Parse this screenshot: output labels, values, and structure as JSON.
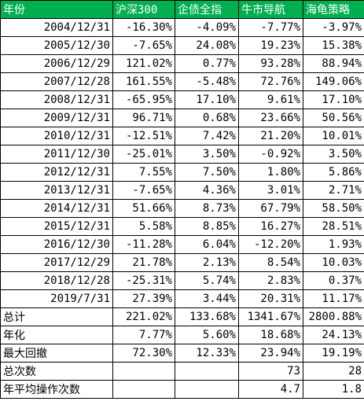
{
  "table": {
    "header": [
      "年份",
      "沪深300",
      "企债全指",
      "牛市导航",
      "海龟策略"
    ],
    "rows": [
      [
        "2004/12/31",
        "-16.30%",
        "-4.09%",
        "-7.77%",
        "-3.97%"
      ],
      [
        "2005/12/30",
        "-7.65%",
        "24.08%",
        "19.23%",
        "15.38%"
      ],
      [
        "2006/12/29",
        "121.02%",
        "0.77%",
        "93.28%",
        "88.94%"
      ],
      [
        "2007/12/28",
        "161.55%",
        "-5.48%",
        "72.76%",
        "149.06%"
      ],
      [
        "2008/12/31",
        "-65.95%",
        "17.10%",
        "9.61%",
        "17.10%"
      ],
      [
        "2009/12/31",
        "96.71%",
        "0.68%",
        "23.66%",
        "50.56%"
      ],
      [
        "2010/12/31",
        "-12.51%",
        "7.42%",
        "21.20%",
        "10.01%"
      ],
      [
        "2011/12/30",
        "-25.01%",
        "3.50%",
        "-0.92%",
        "3.50%"
      ],
      [
        "2012/12/31",
        "7.55%",
        "7.50%",
        "1.80%",
        "5.86%"
      ],
      [
        "2013/12/31",
        "-7.65%",
        "4.36%",
        "3.01%",
        "2.71%"
      ],
      [
        "2014/12/31",
        "51.66%",
        "8.73%",
        "67.79%",
        "58.50%"
      ],
      [
        "2015/12/31",
        "5.58%",
        "8.85%",
        "16.27%",
        "28.51%"
      ],
      [
        "2016/12/30",
        "-11.28%",
        "6.04%",
        "-12.20%",
        "1.93%"
      ],
      [
        "2017/12/29",
        "21.78%",
        "2.13%",
        "8.54%",
        "10.03%"
      ],
      [
        "2018/12/28",
        "-25.31%",
        "5.74%",
        "2.83%",
        "0.37%"
      ],
      [
        "2019/7/31",
        "27.39%",
        "3.44%",
        "20.31%",
        "11.17%"
      ],
      [
        "总计",
        "221.02%",
        "133.68%",
        "1341.67%",
        "2800.88%"
      ],
      [
        "年化",
        "7.77%",
        "5.60%",
        "18.68%",
        "24.13%"
      ],
      [
        "最大回撤",
        "72.30%",
        "12.33%",
        "23.94%",
        "19.19%"
      ],
      [
        "总次数",
        null,
        null,
        "73",
        "28"
      ],
      [
        "年平均操作次数",
        null,
        null,
        "4.7",
        "1.8"
      ]
    ]
  }
}
